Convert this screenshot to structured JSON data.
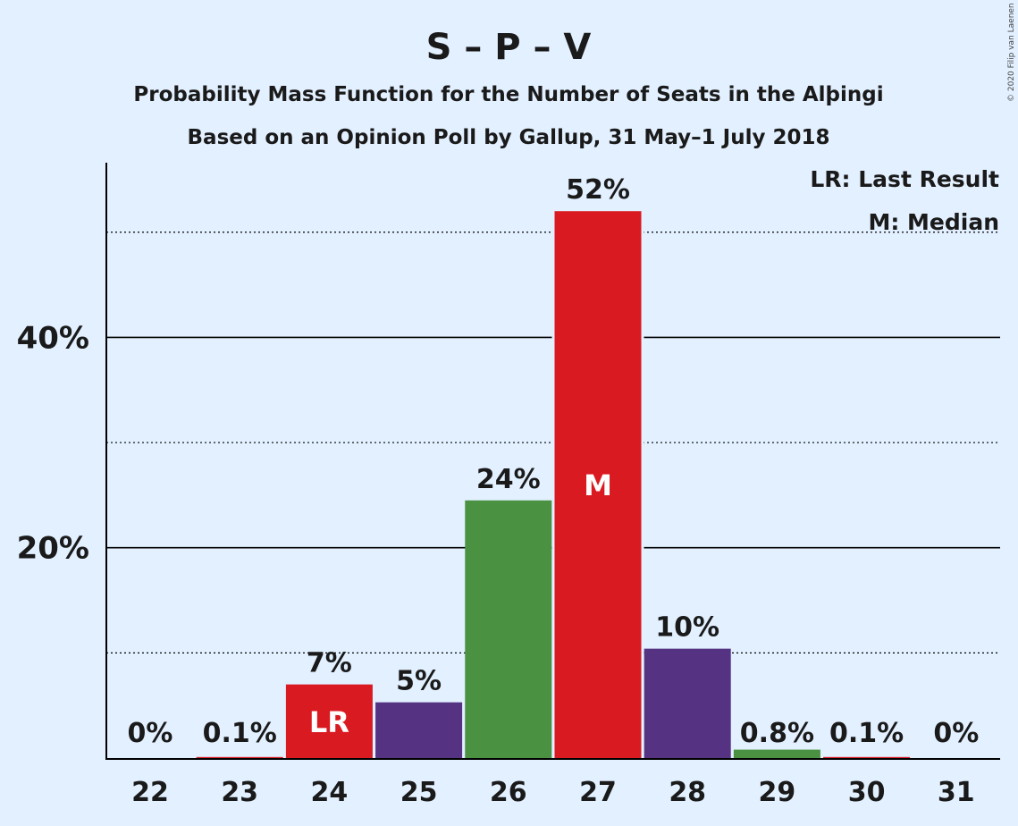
{
  "chart_data": {
    "type": "bar",
    "title": "S – P – V",
    "subtitle_1": "Probability Mass Function for the Number of Seats in the Alþingi",
    "subtitle_2": "Based on an Opinion Poll by Gallup, 31 May–1 July 2018",
    "copyright": "© 2020 Filip van Laenen",
    "legend": {
      "last_result": "LR: Last Result",
      "median": "M: Median",
      "placement": "top-right"
    },
    "categories": [
      "22",
      "23",
      "24",
      "25",
      "26",
      "27",
      "28",
      "29",
      "30",
      "31"
    ],
    "values": [
      0,
      0.1,
      7,
      5.3,
      24.5,
      52,
      10.4,
      0.8,
      0.1,
      0
    ],
    "value_labels": [
      "0%",
      "0.1%",
      "7%",
      "5%",
      "24%",
      "52%",
      "10%",
      "0.8%",
      "0.1%",
      "0%"
    ],
    "bar_colors": [
      "#d91a21",
      "#d91a21",
      "#d91a21",
      "#553282",
      "#4a9142",
      "#d91a21",
      "#553282",
      "#4a9142",
      "#d91a21",
      "#d91a21"
    ],
    "bar_markers": {
      "24": "LR",
      "27": "M"
    },
    "y_ticks": [
      {
        "value": 20,
        "label": "20%"
      },
      {
        "value": 40,
        "label": "40%"
      }
    ],
    "y_minor_gridlines": [
      10,
      30,
      50
    ],
    "ylim": [
      0,
      56
    ],
    "grid": true,
    "xlabel": "",
    "ylabel": ""
  }
}
